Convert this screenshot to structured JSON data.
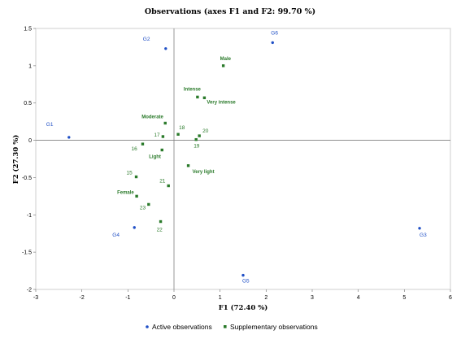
{
  "chart_data": {
    "type": "scatter",
    "title": "Observations (axes F1 and F2: 99.70 %)",
    "xlabel": "F1 (72.40 %)",
    "ylabel": "F2 (27.30 %)",
    "xlim": [
      -3,
      6
    ],
    "ylim": [
      -2,
      1.5
    ],
    "x_ticks": [
      -3,
      -2,
      -1,
      0,
      1,
      2,
      3,
      4,
      5,
      6
    ],
    "y_ticks": [
      -2,
      -1.5,
      -1,
      -0.5,
      0,
      0.5,
      1,
      1.5
    ],
    "x_tick_labels": [
      "-3",
      "-2",
      "-1",
      "0",
      "1",
      "2",
      "3",
      "4",
      "5",
      "6"
    ],
    "y_tick_labels": [
      "-2",
      "-1.5",
      "-1",
      "-0.5",
      "0",
      "0.5",
      "1",
      "1.5"
    ],
    "grid": false,
    "legend_position": "bottom",
    "series": [
      {
        "name": "Active observations",
        "color": "#1f4fc6",
        "marker": "circle",
        "points": [
          {
            "label": "G1",
            "x": -2.28,
            "y": 0.04
          },
          {
            "label": "G2",
            "x": -0.18,
            "y": 1.23
          },
          {
            "label": "G3",
            "x": 5.33,
            "y": -1.18
          },
          {
            "label": "G4",
            "x": -0.86,
            "y": -1.17
          },
          {
            "label": "G5",
            "x": 1.5,
            "y": -1.81
          },
          {
            "label": "G6",
            "x": 2.14,
            "y": 1.31
          }
        ]
      },
      {
        "name": "Supplementary observations",
        "color": "#2a7a2a",
        "marker": "square",
        "points": [
          {
            "label": "Male",
            "x": 1.07,
            "y": 1.0,
            "bold": true
          },
          {
            "label": "Intense",
            "x": 0.51,
            "y": 0.58,
            "bold": true
          },
          {
            "label": "Very intense",
            "x": 0.66,
            "y": 0.57,
            "bold": true
          },
          {
            "label": "Moderate",
            "x": -0.19,
            "y": 0.23,
            "bold": true
          },
          {
            "label": "17",
            "x": -0.24,
            "y": 0.05
          },
          {
            "label": "18",
            "x": 0.09,
            "y": 0.08
          },
          {
            "label": "20",
            "x": 0.55,
            "y": 0.06
          },
          {
            "label": "19",
            "x": 0.48,
            "y": 0.01
          },
          {
            "label": "16",
            "x": -0.68,
            "y": -0.05
          },
          {
            "label": "Light",
            "x": -0.26,
            "y": -0.13,
            "bold": true
          },
          {
            "label": "Very light",
            "x": 0.31,
            "y": -0.34,
            "bold": true
          },
          {
            "label": "15",
            "x": -0.82,
            "y": -0.49
          },
          {
            "label": "21",
            "x": -0.12,
            "y": -0.61
          },
          {
            "label": "Female",
            "x": -0.81,
            "y": -0.75,
            "bold": true
          },
          {
            "label": "23",
            "x": -0.55,
            "y": -0.86
          },
          {
            "label": "22",
            "x": -0.29,
            "y": -1.09
          }
        ]
      }
    ]
  }
}
